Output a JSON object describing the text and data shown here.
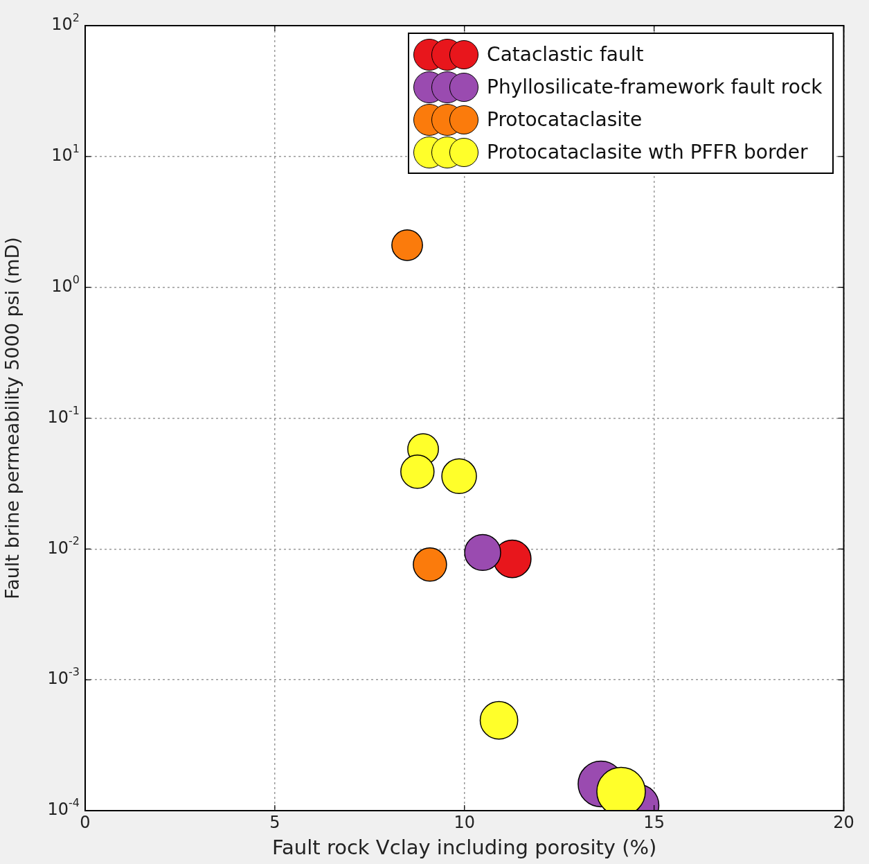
{
  "chart_data": {
    "type": "bubble",
    "xlabel": "Fault rock Vclay including porosity (%)",
    "ylabel": "Fault brine permeability 5000 psi (mD)",
    "xlim": [
      0,
      20
    ],
    "xticks": [
      0,
      5,
      10,
      15,
      20
    ],
    "ylim": [
      0.0001,
      100
    ],
    "yticks": [
      {
        "value": 0.0001,
        "label": "10$^{-4}$"
      },
      {
        "value": 0.001,
        "label": "10$^{-3}$"
      },
      {
        "value": 0.01,
        "label": "10$^{-2}$"
      },
      {
        "value": 0.1,
        "label": "10$^{-1}$"
      },
      {
        "value": 1,
        "label": "10$^{0}$"
      },
      {
        "value": 10,
        "label": "10$^{1}$"
      },
      {
        "value": 100,
        "label": "10$^{2}$"
      }
    ],
    "log": "y",
    "grid": true,
    "legend": "top right",
    "marker": "circle",
    "series": [
      {
        "name": "Cataclastic fault",
        "color": "#e8161c",
        "x": [
          11.26
        ],
        "values": [
          0.0084
        ],
        "sizes": [
          0.6
        ]
      },
      {
        "name": "Phyllosilicate-framework fault rock",
        "color": "#9a4bb0",
        "x": [
          10.48,
          13.6,
          14.58
        ],
        "values": [
          0.0094,
          0.00016,
          0.00011
        ],
        "sizes": [
          0.55,
          0.89,
          0.73
        ]
      },
      {
        "name": "Protocataclasite",
        "color": "#fb7b0c",
        "x": [
          8.49,
          9.09
        ],
        "values": [
          2.1,
          0.0076
        ],
        "sizes": [
          0.4,
          0.47
        ]
      },
      {
        "name": "Protocataclasite wth PFFR border",
        "color": "#ffff2a",
        "x": [
          8.91,
          8.76,
          9.86,
          10.91,
          14.13
        ],
        "values": [
          0.058,
          0.039,
          0.036,
          0.00049,
          0.00014
        ],
        "sizes": [
          0.4,
          0.47,
          0.51,
          0.6,
          1
        ]
      }
    ]
  }
}
